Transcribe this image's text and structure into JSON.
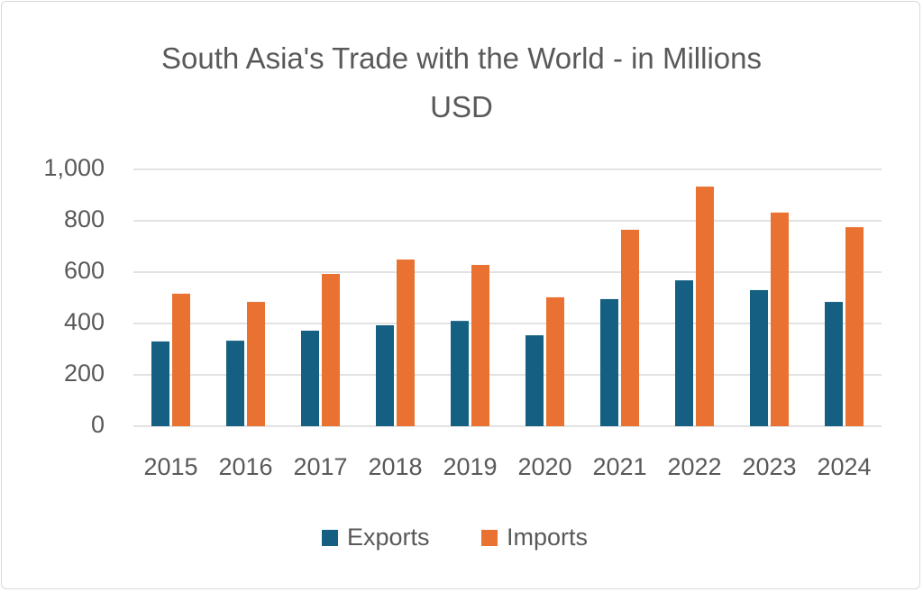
{
  "chart_data": {
    "type": "bar",
    "title": "South Asia's Trade with the World - in Millions USD",
    "categories": [
      "2015",
      "2016",
      "2017",
      "2018",
      "2019",
      "2020",
      "2021",
      "2022",
      "2023",
      "2024"
    ],
    "series": [
      {
        "name": "Exports",
        "color": "#156082",
        "values": [
          330,
          333,
          372,
          393,
          410,
          354,
          495,
          568,
          530,
          484
        ]
      },
      {
        "name": "Imports",
        "color": "#e97132",
        "values": [
          516,
          484,
          593,
          649,
          628,
          502,
          765,
          933,
          832,
          775
        ]
      }
    ],
    "ylim": [
      0,
      1000
    ],
    "yticks": [
      0,
      200,
      400,
      600,
      800,
      {
        "value": 1000,
        "label": "1,000"
      }
    ],
    "grid": true,
    "legend": "bottom"
  }
}
